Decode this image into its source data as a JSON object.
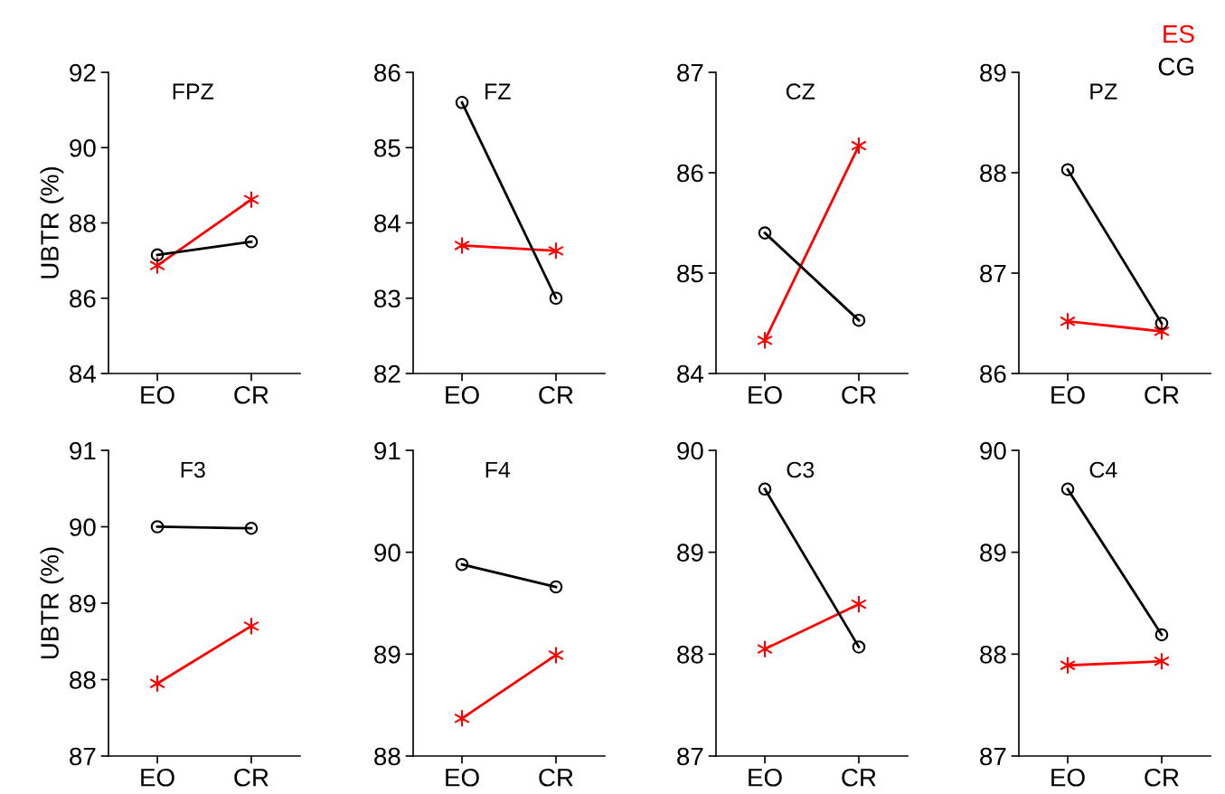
{
  "chart_data": [
    {
      "type": "line",
      "title": "FPZ",
      "ylabel": "UBTR (%)",
      "categories": [
        "EO",
        "CR"
      ],
      "ylim": [
        84,
        92
      ],
      "yticks": [
        84,
        86,
        88,
        90,
        92
      ],
      "grid": false,
      "series": [
        {
          "color": "#ff0000",
          "marker": "cross",
          "values": [
            86.87,
            88.62
          ]
        },
        {
          "color": "#000000",
          "marker": "circle",
          "values": [
            87.15,
            87.5
          ]
        }
      ]
    },
    {
      "type": "line",
      "title": "FZ",
      "categories": [
        "EO",
        "CR"
      ],
      "ylim": [
        82,
        86
      ],
      "yticks": [
        82,
        83,
        84,
        85,
        86
      ],
      "grid": false,
      "series": [
        {
          "color": "#ff0000",
          "marker": "cross",
          "values": [
            83.7,
            83.63
          ]
        },
        {
          "color": "#000000",
          "marker": "circle",
          "values": [
            85.6,
            83.0
          ]
        }
      ]
    },
    {
      "type": "line",
      "title": "CZ",
      "categories": [
        "EO",
        "CR"
      ],
      "ylim": [
        84,
        87
      ],
      "yticks": [
        84,
        85,
        86,
        87
      ],
      "grid": false,
      "series": [
        {
          "color": "#ff0000",
          "marker": "cross",
          "values": [
            84.33,
            86.27
          ]
        },
        {
          "color": "#000000",
          "marker": "circle",
          "values": [
            85.4,
            84.53
          ]
        }
      ]
    },
    {
      "type": "line",
      "title": "PZ",
      "categories": [
        "EO",
        "CR"
      ],
      "ylim": [
        86,
        89
      ],
      "yticks": [
        86,
        87,
        88,
        89
      ],
      "grid": false,
      "series": [
        {
          "name": "ES",
          "color": "#ff0000",
          "marker": "cross",
          "values": [
            86.52,
            86.42
          ]
        },
        {
          "name": "CG",
          "color": "#000000",
          "marker": "circle",
          "values": [
            88.03,
            86.5
          ]
        }
      ]
    },
    {
      "type": "line",
      "title": "F3",
      "ylabel": "UBTR (%)",
      "categories": [
        "EO",
        "CR"
      ],
      "ylim": [
        87,
        91
      ],
      "yticks": [
        87,
        88,
        89,
        90,
        91
      ],
      "grid": false,
      "series": [
        {
          "color": "#ff0000",
          "marker": "cross",
          "values": [
            87.95,
            88.7
          ]
        },
        {
          "color": "#000000",
          "marker": "circle",
          "values": [
            90.0,
            89.98
          ]
        }
      ]
    },
    {
      "type": "line",
      "title": "F4",
      "categories": [
        "EO",
        "CR"
      ],
      "ylim": [
        88,
        91
      ],
      "yticks": [
        88,
        89,
        90,
        91
      ],
      "grid": false,
      "series": [
        {
          "color": "#ff0000",
          "marker": "cross",
          "values": [
            88.37,
            88.99
          ]
        },
        {
          "color": "#000000",
          "marker": "circle",
          "values": [
            89.88,
            89.66
          ]
        }
      ]
    },
    {
      "type": "line",
      "title": "C3",
      "categories": [
        "EO",
        "CR"
      ],
      "ylim": [
        87,
        90
      ],
      "yticks": [
        87,
        88,
        89,
        90
      ],
      "grid": false,
      "series": [
        {
          "color": "#ff0000",
          "marker": "cross",
          "values": [
            88.05,
            88.49
          ]
        },
        {
          "color": "#000000",
          "marker": "circle",
          "values": [
            89.62,
            88.07
          ]
        }
      ]
    },
    {
      "type": "line",
      "title": "C4",
      "categories": [
        "EO",
        "CR"
      ],
      "ylim": [
        87,
        90
      ],
      "yticks": [
        87,
        88,
        89,
        90
      ],
      "grid": false,
      "series": [
        {
          "color": "#ff0000",
          "marker": "cross",
          "values": [
            87.89,
            87.93
          ]
        },
        {
          "color": "#000000",
          "marker": "circle",
          "values": [
            89.62,
            88.19
          ]
        }
      ]
    }
  ]
}
